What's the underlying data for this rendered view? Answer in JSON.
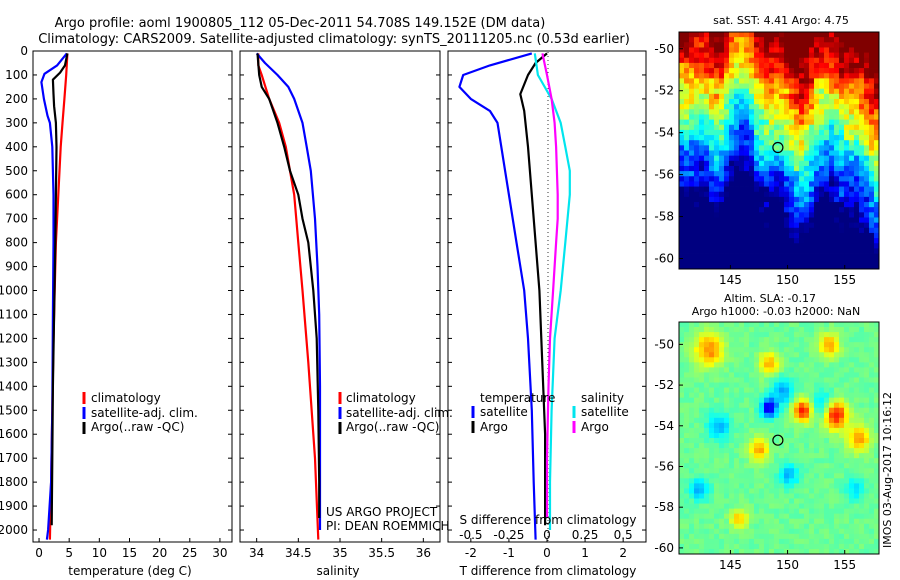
{
  "figure": {
    "title_line1": "Argo profile: aoml 1900805_112 05-Dec-2011 54.708S 149.152E (DM data)",
    "title_line2": "Climatology: CARS2009. Satellite-adjusted climatology: synTS_20111205.nc (0.53d earlier)",
    "credit": "IMOS 03-Aug-2017 10:16:12",
    "project_line1": "US ARGO PROJECT",
    "project_line2": "PI: DEAN ROEMMICH"
  },
  "colors": {
    "climatology": "#ff0000",
    "satellite": "#0000ff",
    "argo": "#000000",
    "salinity_satellite": "#00e5ee",
    "salinity_argo": "#ff00ff"
  },
  "chart_data": [
    {
      "id": "temperature",
      "type": "line",
      "xlabel": "temperature (deg C)",
      "xlim": [
        -1,
        32
      ],
      "ylim": [
        0,
        2050
      ],
      "y_inverted": true,
      "xticks": [
        0,
        5,
        10,
        15,
        20,
        25,
        30
      ],
      "yticks": [
        0,
        100,
        200,
        300,
        400,
        500,
        600,
        700,
        800,
        900,
        1000,
        1100,
        1200,
        1300,
        1400,
        1500,
        1600,
        1700,
        1800,
        1900,
        2000
      ],
      "legend": [
        "climatology",
        "satellite-adj. clim.",
        "Argo(..raw -QC)"
      ],
      "series": [
        {
          "name": "climatology",
          "color_key": "climatology",
          "x": [
            4.7,
            4.5,
            4.2,
            3.9,
            3.6,
            3.4,
            3.2,
            3.0,
            2.8,
            2.6,
            2.4,
            2.2,
            2.0,
            1.8
          ],
          "y": [
            10,
            100,
            200,
            300,
            400,
            500,
            600,
            700,
            800,
            1000,
            1200,
            1500,
            1800,
            2040
          ]
        },
        {
          "name": "satellite-adj. clim.",
          "color_key": "satellite",
          "x": [
            4.6,
            3.0,
            0.9,
            0.4,
            0.8,
            1.4,
            1.8,
            2.2,
            2.4,
            2.4,
            2.3,
            2.2,
            2.0,
            1.5,
            1.3
          ],
          "y": [
            10,
            60,
            95,
            130,
            200,
            270,
            300,
            400,
            600,
            800,
            1100,
            1500,
            1800,
            2000,
            2040
          ]
        },
        {
          "name": "Argo(..raw -QC)",
          "color_key": "argo",
          "x": [
            4.7,
            4.3,
            3.5,
            2.3,
            2.4,
            2.5,
            2.8,
            2.9,
            2.8,
            2.7,
            2.5,
            2.3,
            2.2,
            2.1
          ],
          "y": [
            10,
            60,
            90,
            120,
            180,
            230,
            300,
            400,
            600,
            800,
            1100,
            1400,
            1700,
            1980
          ]
        }
      ]
    },
    {
      "id": "salinity",
      "type": "line",
      "xlabel": "salinity",
      "xlim": [
        33.8,
        36.2
      ],
      "ylim": [
        0,
        2050
      ],
      "y_inverted": true,
      "xticks": [
        34,
        34.5,
        35,
        35.5,
        36
      ],
      "xticklabels": [
        "34",
        "34.5",
        "35",
        "35.5",
        "36"
      ],
      "legend": [
        "climatology",
        "satellite-adj. clim.",
        "Argo(..raw -QC)"
      ],
      "series": [
        {
          "name": "climatology",
          "color_key": "climatology",
          "x": [
            34.02,
            34.02,
            34.06,
            34.15,
            34.27,
            34.35,
            34.4,
            34.45,
            34.5,
            34.55,
            34.62,
            34.7,
            34.74
          ],
          "y": [
            10,
            60,
            100,
            200,
            300,
            400,
            500,
            600,
            800,
            1000,
            1300,
            1700,
            2040
          ]
        },
        {
          "name": "satellite-adj. clim.",
          "color_key": "satellite",
          "x": [
            34.0,
            34.1,
            34.25,
            34.38,
            34.45,
            34.55,
            34.6,
            34.65,
            34.7,
            34.73,
            34.75,
            34.76,
            34.76,
            34.76
          ],
          "y": [
            10,
            50,
            100,
            150,
            200,
            300,
            400,
            500,
            700,
            900,
            1100,
            1400,
            1700,
            2000
          ]
        },
        {
          "name": "Argo(..raw -QC)",
          "color_key": "argo",
          "x": [
            34.01,
            34.03,
            34.06,
            34.15,
            34.25,
            34.33,
            34.4,
            34.5,
            34.55,
            34.62,
            34.68,
            34.72,
            34.74,
            34.75,
            34.75
          ],
          "y": [
            10,
            100,
            150,
            200,
            300,
            400,
            500,
            600,
            700,
            800,
            1000,
            1200,
            1500,
            1800,
            1950
          ]
        }
      ]
    },
    {
      "id": "difference",
      "type": "line",
      "xlabel": "T difference from climatology",
      "secondary_xlabel": "S difference from climatology",
      "xlim": [
        -2.6,
        2.6
      ],
      "ylim": [
        0,
        2050
      ],
      "y_inverted": true,
      "xticks": [
        -2,
        -1,
        0,
        1,
        2
      ],
      "secondary_xticks": [
        -0.5,
        -0.25,
        0,
        0.25,
        0.5
      ],
      "secondary_xticklabels": [
        "-0.5",
        "-0.25",
        "0",
        "0.25",
        "0.5"
      ],
      "legend_groups": [
        {
          "title": "temperature",
          "entries": [
            "satellite",
            "Argo"
          ]
        },
        {
          "title": "salinity",
          "entries": [
            "satellite",
            "Argo"
          ]
        }
      ],
      "series": [
        {
          "name": "temperature satellite",
          "color_key": "satellite",
          "x": [
            -0.4,
            -1.5,
            -2.2,
            -2.3,
            -2.0,
            -1.5,
            -1.3,
            -1.2,
            -1.1,
            -1.0,
            -0.8,
            -0.6,
            -0.5,
            -0.4,
            -0.35,
            -0.3
          ],
          "y": [
            10,
            60,
            100,
            150,
            200,
            250,
            300,
            400,
            500,
            600,
            800,
            1000,
            1200,
            1500,
            1800,
            2040
          ]
        },
        {
          "name": "temperature Argo",
          "color_key": "argo",
          "x": [
            0.0,
            -0.3,
            -0.5,
            -0.7,
            -0.6,
            -0.5,
            -0.4,
            -0.3,
            -0.2,
            -0.15,
            -0.1,
            -0.05,
            -0.05,
            -0.05
          ],
          "y": [
            10,
            50,
            100,
            180,
            250,
            400,
            600,
            800,
            1000,
            1200,
            1400,
            1600,
            1800,
            1980
          ]
        },
        {
          "name": "salinity satellite",
          "color_key": "salinity_satellite",
          "x": [
            -0.08,
            -0.06,
            0.03,
            0.09,
            0.12,
            0.15,
            0.15,
            0.12,
            0.09,
            0.05,
            0.03,
            0.02,
            0.02
          ],
          "y": [
            10,
            100,
            200,
            300,
            400,
            500,
            600,
            800,
            1000,
            1200,
            1500,
            1800,
            2000
          ]
        },
        {
          "name": "salinity Argo",
          "color_key": "salinity_argo",
          "x": [
            -0.03,
            0.0,
            0.03,
            0.05,
            0.06,
            0.07,
            0.07,
            0.06,
            0.04,
            0.02,
            0.01,
            0.0,
            0.0
          ],
          "y": [
            10,
            100,
            200,
            300,
            400,
            600,
            700,
            800,
            1000,
            1200,
            1400,
            1700,
            1950
          ]
        }
      ]
    },
    {
      "id": "sst_map",
      "type": "heatmap",
      "title": "sat. SST: 4.41  Argo: 4.75",
      "xlim": [
        140.5,
        158
      ],
      "ylim": [
        -60.5,
        -49.2
      ],
      "xticks": [
        145,
        150,
        155
      ],
      "yticks": [
        -50,
        -52,
        -54,
        -56,
        -58,
        -60
      ],
      "marker": {
        "lon": 149.152,
        "lat": -54.708
      }
    },
    {
      "id": "sla_map",
      "type": "heatmap",
      "title_line1": "Altim. SLA: -0.17",
      "title_line2": "Argo h1000: -0.03 h2000: NaN",
      "xlim": [
        140.5,
        158
      ],
      "ylim": [
        -60.3,
        -48.9
      ],
      "xticks": [
        145,
        150,
        155
      ],
      "yticks": [
        -50,
        -52,
        -54,
        -56,
        -58,
        -60
      ],
      "marker": {
        "lon": 149.152,
        "lat": -54.708
      }
    }
  ]
}
